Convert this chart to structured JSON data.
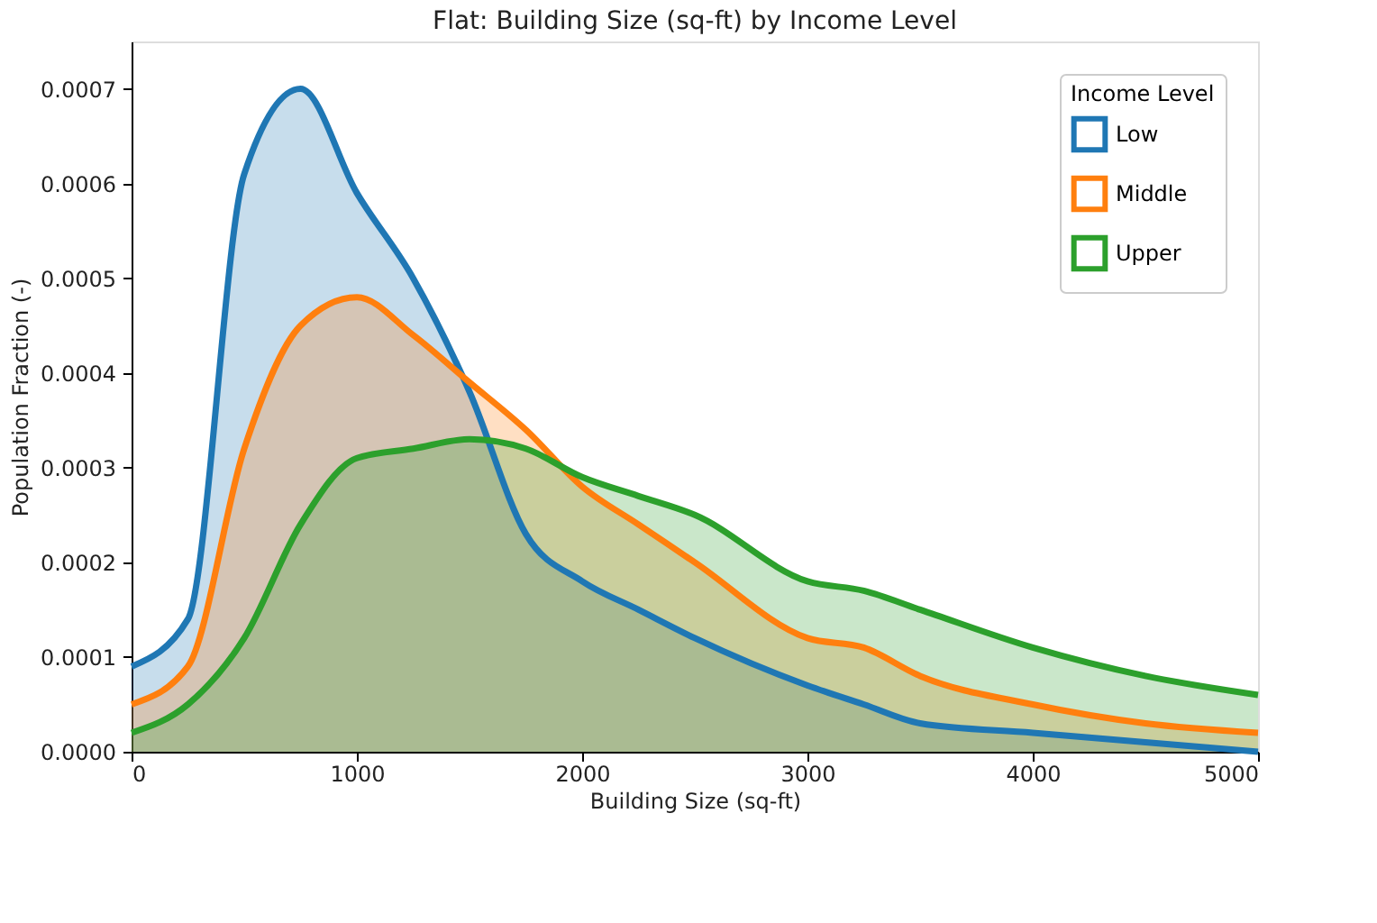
{
  "chart_data": {
    "type": "area",
    "title": "Flat: Building Size (sq-ft) by Income Level",
    "xlabel": "Building Size (sq-ft)",
    "ylabel": "Population Fraction (-)",
    "legend_title": "Income Level",
    "legend": "top right",
    "grid": false,
    "line_style": "solid",
    "marker": "none",
    "x": [
      0,
      250,
      500,
      750,
      1000,
      1250,
      1500,
      1750,
      2000,
      2250,
      2500,
      3000,
      3250,
      3500,
      4000,
      4500,
      5000
    ],
    "series": [
      {
        "name": "Low",
        "color": "#1f77b4",
        "values": [
          9e-05,
          0.00014,
          0.00061,
          0.0007,
          0.00059,
          0.0005,
          0.00038,
          0.00023,
          0.00018,
          0.00015,
          0.00012,
          7e-05,
          5e-05,
          3e-05,
          2e-05,
          1e-05,
          0.0
        ]
      },
      {
        "name": "Middle",
        "color": "#ff7f0e",
        "values": [
          5e-05,
          9e-05,
          0.00032,
          0.00045,
          0.00048,
          0.00044,
          0.00039,
          0.00034,
          0.00028,
          0.00024,
          0.0002,
          0.00012,
          0.00011,
          8e-05,
          5e-05,
          3e-05,
          2e-05
        ]
      },
      {
        "name": "Upper",
        "color": "#2ca02c",
        "values": [
          2e-05,
          5e-05,
          0.00012,
          0.00024,
          0.00031,
          0.00032,
          0.00033,
          0.00032,
          0.00029,
          0.00027,
          0.00025,
          0.00018,
          0.00017,
          0.00015,
          0.00011,
          8e-05,
          6e-05
        ]
      }
    ],
    "xlim": [
      0,
      5000
    ],
    "xticks": [
      0,
      1000,
      2000,
      3000,
      4000,
      5000
    ],
    "ylim": [
      0,
      0.00075
    ],
    "yticks": [
      {
        "value": 0,
        "label": "0.0000"
      },
      {
        "value": 0.0001,
        "label": "0.0001"
      },
      {
        "value": 0.0002,
        "label": "0.0002"
      },
      {
        "value": 0.0003,
        "label": "0.0003"
      },
      {
        "value": 0.0004,
        "label": "0.0004"
      },
      {
        "value": 0.0005,
        "label": "0.0005"
      },
      {
        "value": 0.0006,
        "label": "0.0006"
      },
      {
        "value": 0.0007,
        "label": "0.0007"
      }
    ]
  }
}
